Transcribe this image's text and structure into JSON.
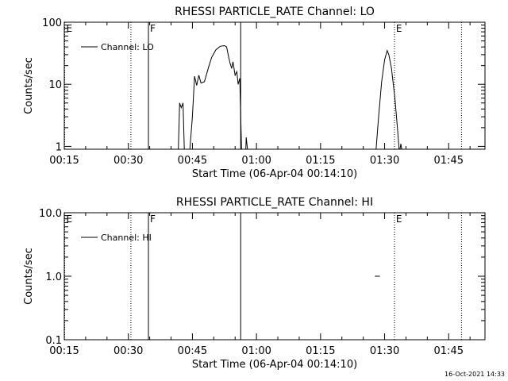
{
  "chart_data": [
    {
      "type": "line",
      "title": "RHESSI PARTICLE_RATE Channel: LO",
      "xlabel": "Start Time (06-Apr-04 00:14:10)",
      "ylabel": "Counts/sec",
      "x_unit": "minutes",
      "xlim": [
        15,
        113.5
      ],
      "ylim": [
        0.9,
        100
      ],
      "yscale": "log",
      "xtick_values": [
        15,
        30,
        45,
        60,
        75,
        90,
        105
      ],
      "xtick_labels": [
        "00:15",
        "00:30",
        "00:45",
        "01:00",
        "01:15",
        "01:30",
        "01:45"
      ],
      "ytick_values": [
        1,
        10,
        100
      ],
      "ytick_labels": [
        "1",
        "10",
        "100"
      ],
      "legend": {
        "label": "Channel: LO",
        "placement": "top-left"
      },
      "markers": [
        {
          "x": 15.1,
          "label": "E",
          "style": "dotted"
        },
        {
          "x": 30.6,
          "label": "",
          "style": "dotted"
        },
        {
          "x": 34.7,
          "label": "F",
          "style": "solid"
        },
        {
          "x": 56.3,
          "label": "",
          "style": "solid"
        },
        {
          "x": 92.3,
          "label": "E",
          "style": "dotted"
        },
        {
          "x": 108.0,
          "label": "",
          "style": "dotted"
        }
      ],
      "series": [
        {
          "name": "Channel: LO",
          "segments": [
            [
              [
                41.7,
                0.9
              ],
              [
                42.0,
                5.0
              ],
              [
                42.4,
                4.2
              ],
              [
                42.8,
                5.0
              ],
              [
                43.1,
                0.9
              ]
            ],
            [
              [
                44.4,
                0.9
              ],
              [
                45.0,
                3.0
              ],
              [
                45.5,
                13.5
              ],
              [
                46.0,
                9.6
              ],
              [
                46.5,
                14.0
              ],
              [
                47.0,
                10.5
              ],
              [
                47.8,
                11.0
              ],
              [
                48.7,
                18.0
              ],
              [
                49.5,
                27.0
              ],
              [
                50.5,
                36.0
              ],
              [
                51.5,
                41.0
              ],
              [
                52.5,
                42.0
              ],
              [
                53.0,
                40.0
              ],
              [
                53.5,
                27.0
              ],
              [
                53.8,
                22.0
              ],
              [
                54.2,
                18.0
              ],
              [
                54.5,
                23.0
              ],
              [
                55.0,
                14.0
              ],
              [
                55.4,
                16.0
              ],
              [
                55.7,
                10.0
              ],
              [
                56.1,
                12.5
              ],
              [
                56.5,
                0.9
              ]
            ],
            [
              [
                57.5,
                0.9
              ],
              [
                57.6,
                1.4
              ],
              [
                57.9,
                0.9
              ]
            ],
            [
              [
                88.0,
                0.9
              ],
              [
                88.6,
                3.0
              ],
              [
                89.3,
                11.0
              ],
              [
                90.0,
                25.0
              ],
              [
                90.6,
                35.0
              ],
              [
                91.0,
                30.0
              ],
              [
                91.6,
                18.0
              ],
              [
                92.4,
                6.0
              ],
              [
                93.0,
                2.0
              ],
              [
                93.4,
                0.9
              ]
            ],
            [
              [
                93.6,
                0.9
              ],
              [
                93.8,
                1.1
              ],
              [
                94.0,
                0.9
              ]
            ]
          ]
        }
      ]
    },
    {
      "type": "line",
      "title": "RHESSI PARTICLE_RATE Channel: HI",
      "xlabel": "Start Time (06-Apr-04 00:14:10)",
      "ylabel": "Counts/sec",
      "x_unit": "minutes",
      "xlim": [
        15,
        113.5
      ],
      "ylim": [
        0.1,
        10
      ],
      "yscale": "log",
      "xtick_values": [
        15,
        30,
        45,
        60,
        75,
        90,
        105
      ],
      "xtick_labels": [
        "00:15",
        "00:30",
        "00:45",
        "01:00",
        "01:15",
        "01:30",
        "01:45"
      ],
      "ytick_values": [
        0.1,
        1,
        10
      ],
      "ytick_labels": [
        "0.1",
        "1.0",
        "10.0"
      ],
      "legend": {
        "label": "Channel: HI",
        "placement": "top-left"
      },
      "markers": [
        {
          "x": 15.1,
          "label": "E",
          "style": "dotted"
        },
        {
          "x": 30.6,
          "label": "",
          "style": "dotted"
        },
        {
          "x": 34.7,
          "label": "F",
          "style": "solid"
        },
        {
          "x": 56.3,
          "label": "",
          "style": "solid"
        },
        {
          "x": 92.3,
          "label": "E",
          "style": "dotted"
        },
        {
          "x": 108.0,
          "label": "",
          "style": "dotted"
        }
      ],
      "series": [
        {
          "name": "Channel: HI",
          "segments": [
            [
              [
                87.7,
                1.0
              ],
              [
                88.9,
                1.0
              ]
            ]
          ]
        }
      ]
    }
  ],
  "footer": {
    "timestamp": "16-Oct-2021 14:33"
  }
}
